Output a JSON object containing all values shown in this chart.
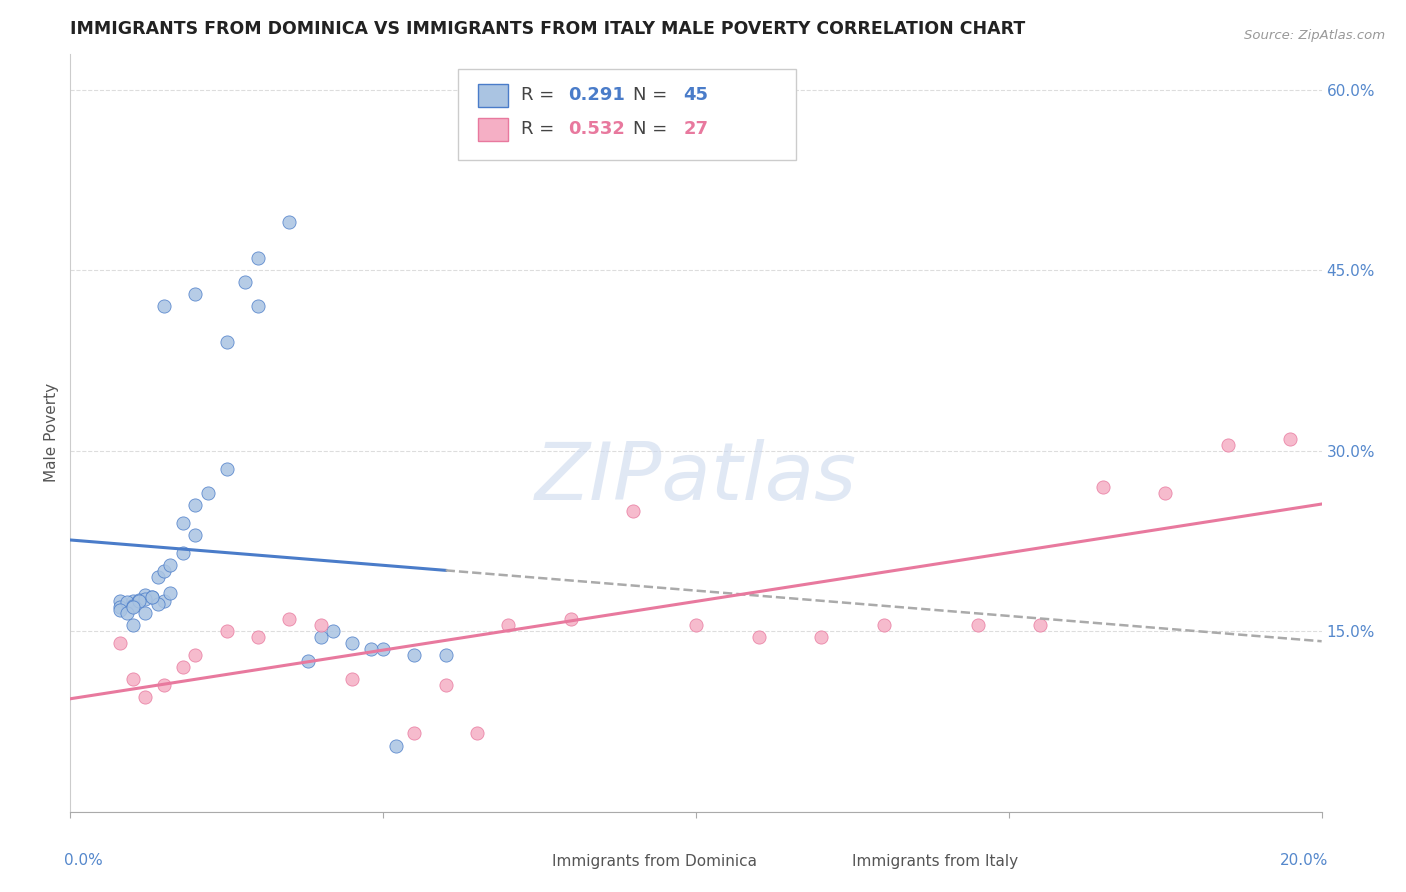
{
  "title": "IMMIGRANTS FROM DOMINICA VS IMMIGRANTS FROM ITALY MALE POVERTY CORRELATION CHART",
  "source": "Source: ZipAtlas.com",
  "ylabel": "Male Poverty",
  "right_ytick_labels": [
    "15.0%",
    "30.0%",
    "45.0%",
    "60.0%"
  ],
  "right_ytick_vals": [
    0.15,
    0.3,
    0.45,
    0.6
  ],
  "dominica_R": 0.291,
  "dominica_N": 45,
  "italy_R": 0.532,
  "italy_N": 27,
  "dominica_color": "#aac4e2",
  "italy_color": "#f5afc5",
  "dominica_line_color": "#4a7cc9",
  "italy_line_color": "#e8799e",
  "dominica_scatter_x": [
    0.0008,
    0.001,
    0.0012,
    0.0008,
    0.0015,
    0.001,
    0.0013,
    0.0009,
    0.0011,
    0.0014,
    0.001,
    0.0012,
    0.0008,
    0.0016,
    0.0011,
    0.0009,
    0.0013,
    0.001,
    0.0014,
    0.0015,
    0.0012,
    0.001,
    0.0018,
    0.002,
    0.0016,
    0.0022,
    0.0025,
    0.002,
    0.0018,
    0.003,
    0.0025,
    0.0028,
    0.0035,
    0.003,
    0.004,
    0.0045,
    0.005,
    0.0042,
    0.006,
    0.0055,
    0.0038,
    0.0048,
    0.0052,
    0.002,
    0.0015
  ],
  "dominica_scatter_y": [
    0.175,
    0.175,
    0.18,
    0.17,
    0.175,
    0.172,
    0.178,
    0.174,
    0.176,
    0.173,
    0.171,
    0.177,
    0.168,
    0.182,
    0.175,
    0.165,
    0.178,
    0.17,
    0.195,
    0.2,
    0.165,
    0.155,
    0.215,
    0.23,
    0.205,
    0.265,
    0.285,
    0.255,
    0.24,
    0.42,
    0.39,
    0.44,
    0.49,
    0.46,
    0.145,
    0.14,
    0.135,
    0.15,
    0.13,
    0.13,
    0.125,
    0.135,
    0.055,
    0.43,
    0.42
  ],
  "italy_scatter_x": [
    0.0008,
    0.001,
    0.0012,
    0.0015,
    0.0018,
    0.002,
    0.0025,
    0.003,
    0.0035,
    0.004,
    0.0045,
    0.0055,
    0.006,
    0.0065,
    0.007,
    0.008,
    0.009,
    0.01,
    0.011,
    0.012,
    0.013,
    0.0145,
    0.0155,
    0.0165,
    0.0175,
    0.0185,
    0.0195
  ],
  "italy_scatter_y": [
    0.14,
    0.11,
    0.095,
    0.105,
    0.12,
    0.13,
    0.15,
    0.145,
    0.16,
    0.155,
    0.11,
    0.065,
    0.105,
    0.065,
    0.155,
    0.16,
    0.25,
    0.155,
    0.145,
    0.145,
    0.155,
    0.155,
    0.155,
    0.27,
    0.265,
    0.305,
    0.31
  ],
  "xmin": 0.0,
  "xmax": 0.02,
  "ymin": 0.0,
  "ymax": 0.63,
  "watermark_text": "ZIPatlas",
  "watermark_color": "#ccd9ee"
}
